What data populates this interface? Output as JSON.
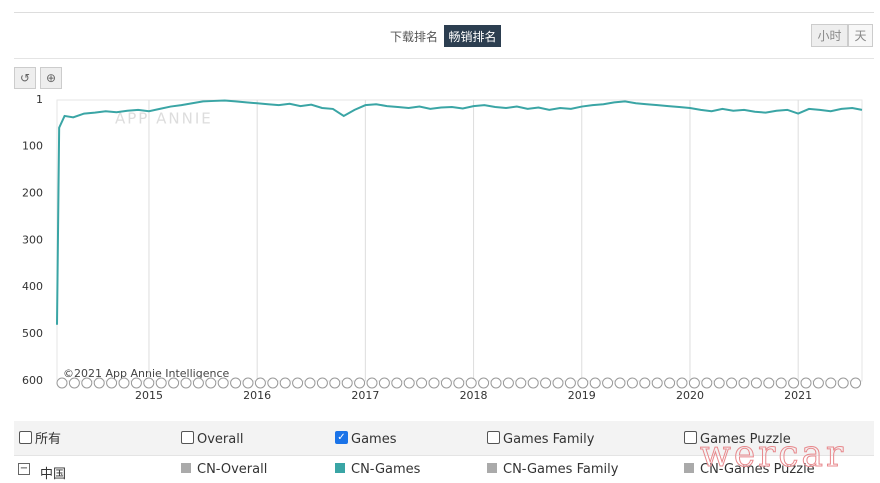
{
  "tabs": [
    "下载排名",
    "畅销排名"
  ],
  "active_tab": 1,
  "granularity": [
    "小时",
    "天"
  ],
  "chart_data": {
    "type": "line",
    "watermark": "APP ANNIE",
    "credit": "©2021 App Annie Intelligence",
    "x": [
      2014.15,
      2014.17,
      2014.22,
      2014.3,
      2014.4,
      2014.5,
      2014.6,
      2014.7,
      2014.8,
      2014.9,
      2015.0,
      2015.1,
      2015.2,
      2015.3,
      2015.4,
      2015.5,
      2015.6,
      2015.7,
      2015.8,
      2015.9,
      2016.0,
      2016.1,
      2016.2,
      2016.3,
      2016.4,
      2016.5,
      2016.6,
      2016.7,
      2016.8,
      2016.9,
      2017.0,
      2017.1,
      2017.2,
      2017.3,
      2017.4,
      2017.5,
      2017.6,
      2017.7,
      2017.8,
      2017.9,
      2018.0,
      2018.1,
      2018.2,
      2018.3,
      2018.4,
      2018.5,
      2018.6,
      2018.7,
      2018.8,
      2018.9,
      2019.0,
      2019.1,
      2019.2,
      2019.3,
      2019.4,
      2019.5,
      2019.6,
      2019.7,
      2019.8,
      2019.9,
      2020.0,
      2020.1,
      2020.2,
      2020.3,
      2020.4,
      2020.5,
      2020.6,
      2020.7,
      2020.8,
      2020.9,
      2021.0,
      2021.1,
      2021.2,
      2021.3,
      2021.4,
      2021.5,
      2021.59
    ],
    "series": [
      {
        "name": "CN-Games",
        "color": "#3aa5a5",
        "values": [
          480,
          60,
          35,
          38,
          30,
          28,
          25,
          27,
          24,
          22,
          25,
          20,
          15,
          12,
          8,
          4,
          3,
          2,
          4,
          6,
          8,
          10,
          12,
          9,
          14,
          11,
          18,
          20,
          35,
          22,
          12,
          10,
          14,
          16,
          18,
          15,
          20,
          17,
          16,
          19,
          14,
          12,
          16,
          18,
          15,
          20,
          17,
          22,
          18,
          20,
          15,
          12,
          10,
          6,
          4,
          8,
          10,
          12,
          14,
          16,
          18,
          22,
          25,
          20,
          24,
          22,
          26,
          28,
          24,
          22,
          30,
          20,
          22,
          25,
          20,
          18,
          22
        ]
      }
    ],
    "xlim": [
      2014.15,
      2021.59
    ],
    "xticks": [
      2015,
      2016,
      2017,
      2018,
      2019,
      2020,
      2021
    ],
    "ylim": [
      600,
      1
    ],
    "yticks": [
      1,
      100,
      200,
      300,
      400,
      500,
      600
    ],
    "grid": true
  },
  "filters": [
    {
      "label": "所有",
      "checked": false
    },
    {
      "label": "Overall",
      "checked": false
    },
    {
      "label": "Games",
      "checked": true
    },
    {
      "label": "Games Family",
      "checked": false
    },
    {
      "label": "Games Puzzle",
      "checked": false
    }
  ],
  "legend": {
    "country": "中国",
    "others": [
      {
        "name": "CN-Overall",
        "color": "#aaaaaa"
      },
      {
        "name": "CN-Games Family",
        "color": "#aaaaaa"
      },
      {
        "name": "CN-Games Puzzle",
        "color": "#aaaaaa"
      }
    ]
  },
  "stamp": "wercar"
}
